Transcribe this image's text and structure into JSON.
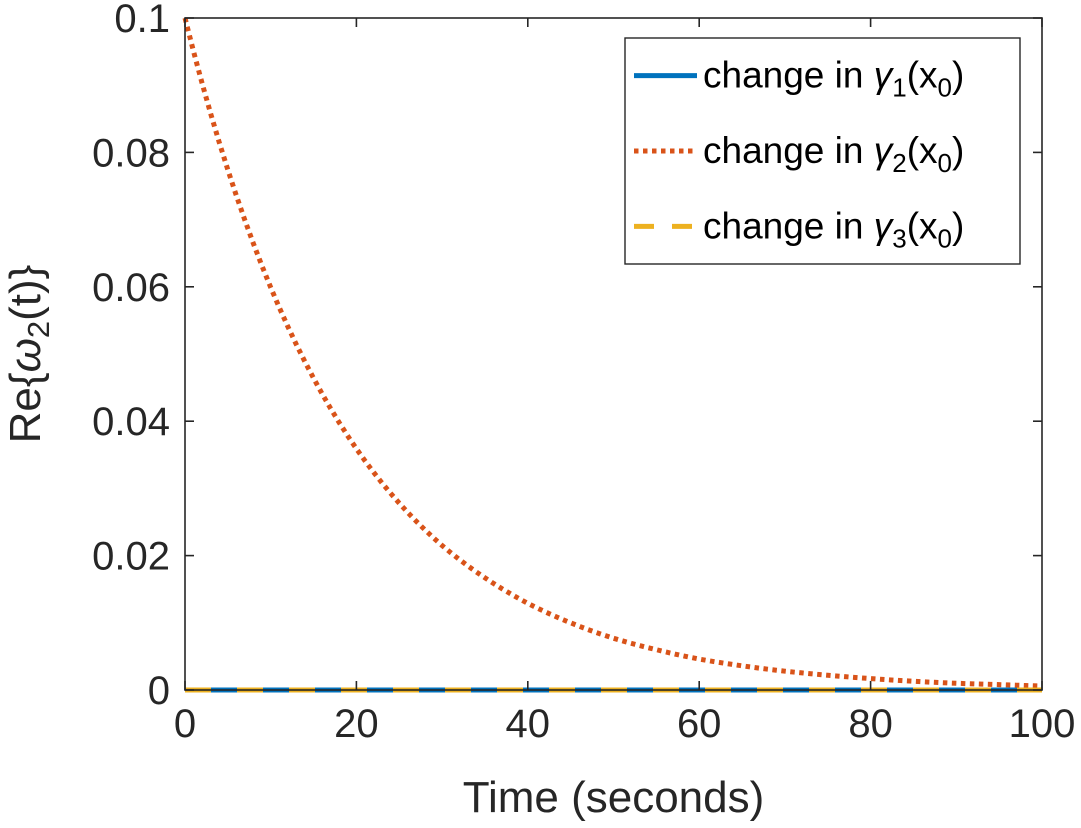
{
  "chart_data": {
    "type": "line",
    "xlabel": "Time (seconds)",
    "ylabel": {
      "prefix": "Re{",
      "symbol": "ω",
      "subscript": "2",
      "suffix": "(t)}"
    },
    "xlim": [
      0,
      100
    ],
    "ylim": [
      0,
      0.1
    ],
    "xticks": [
      0,
      20,
      40,
      60,
      80,
      100
    ],
    "xtick_labels": [
      "0",
      "20",
      "40",
      "60",
      "80",
      "100"
    ],
    "yticks": [
      0,
      0.02,
      0.04,
      0.06,
      0.08,
      0.1
    ],
    "ytick_labels": [
      "0",
      "0.02",
      "0.04",
      "0.06",
      "0.08",
      "0.1"
    ],
    "grid": false,
    "legend_position": "top-right",
    "x": [
      0,
      5,
      10,
      15,
      20,
      25,
      30,
      35,
      40,
      45,
      50,
      55,
      60,
      65,
      70,
      75,
      80,
      85,
      90,
      95,
      100
    ],
    "series": [
      {
        "legend": {
          "prefix": "change in ",
          "symbol": "γ",
          "subscript": "1",
          "arg": "x",
          "arg_subscript": "0"
        },
        "color": "#0072BD",
        "style": "solid",
        "values": [
          0,
          0,
          0,
          0,
          0,
          0,
          0,
          0,
          0,
          0,
          0,
          0,
          0,
          0,
          0,
          0,
          0,
          0,
          0,
          0,
          0
        ]
      },
      {
        "legend": {
          "prefix": "change in ",
          "symbol": "γ",
          "subscript": "2",
          "arg": "x",
          "arg_subscript": "0"
        },
        "color": "#D95319",
        "style": "dotted",
        "values": [
          0.1,
          0.0774,
          0.0599,
          0.0464,
          0.0359,
          0.0278,
          0.0215,
          0.0167,
          0.0129,
          0.01,
          0.0077,
          0.006,
          0.0046,
          0.0036,
          0.0028,
          0.0022,
          0.0017,
          0.0013,
          0.001,
          0.0008,
          0.0006
        ]
      },
      {
        "legend": {
          "prefix": "change in ",
          "symbol": "γ",
          "subscript": "3",
          "arg": "x",
          "arg_subscript": "0"
        },
        "color": "#EDB120",
        "style": "dashed",
        "values": [
          0,
          0,
          0,
          0,
          0,
          0,
          0,
          0,
          0,
          0,
          0,
          0,
          0,
          0,
          0,
          0,
          0,
          0,
          0,
          0,
          0
        ]
      }
    ]
  }
}
